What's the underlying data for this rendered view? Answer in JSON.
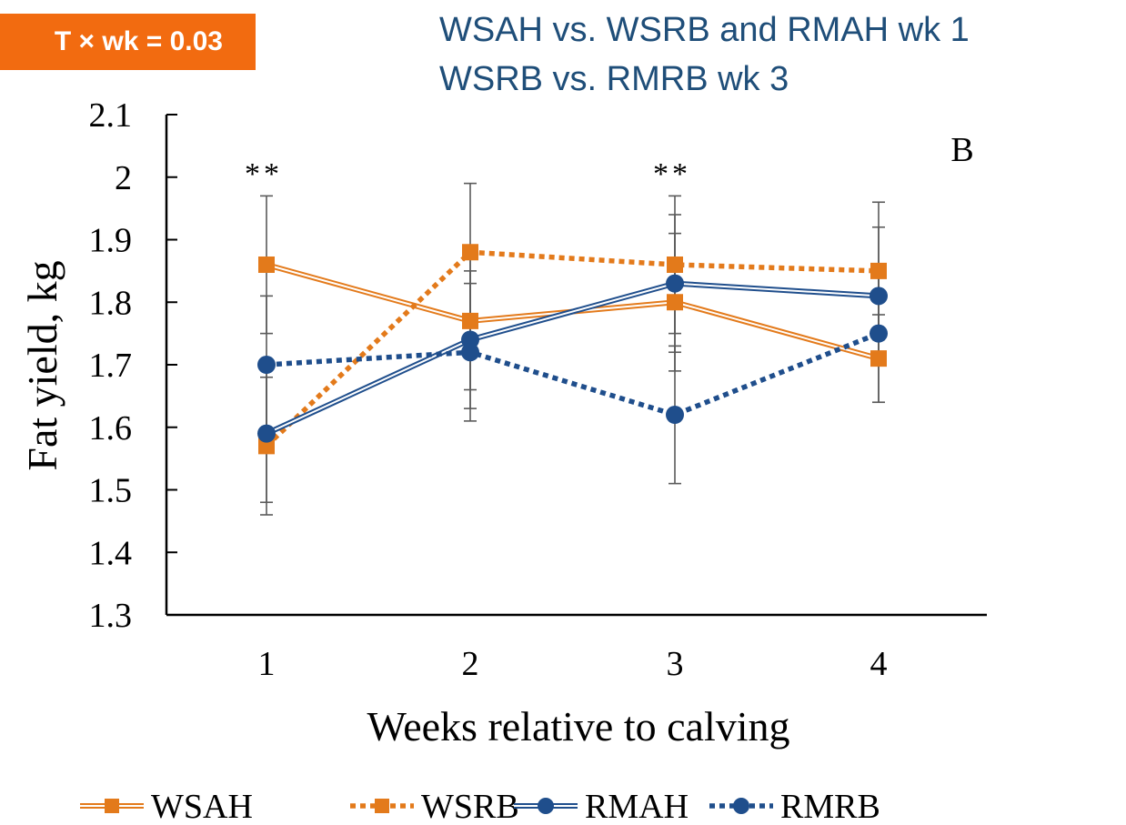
{
  "badge": {
    "text": "T × wk = 0.03"
  },
  "subtitles": [
    "WSAH vs. WSRB and RMAH wk 1",
    "WSRB vs. RMRB wk 3"
  ],
  "colors": {
    "orange": "#e37a1b",
    "blue": "#1f4e8c",
    "badge": "#f26b10",
    "subtitle": "#1f4e79",
    "errorbar": "#5a5a5a"
  },
  "chart_data": {
    "type": "line",
    "x": [
      1,
      2,
      3,
      4
    ],
    "xlabel": "Weeks relative to calving",
    "ylabel": "Fat yield,  kg",
    "ylim": [
      1.3,
      2.1
    ],
    "yticks": [
      "1.3",
      "1.4",
      "1.5",
      "1.6",
      "1.7",
      "1.8",
      "1.9",
      "2",
      "2.1"
    ],
    "xticks": [
      "1",
      "2",
      "3",
      "4"
    ],
    "panel_label": "B",
    "annotations": [
      {
        "x": 1,
        "text": "**"
      },
      {
        "x": 3,
        "text": "**"
      }
    ],
    "series": [
      {
        "name": "WSAH",
        "color": "orange",
        "style": "double",
        "marker": "square",
        "values": [
          1.86,
          1.77,
          1.8,
          1.71
        ],
        "err": [
          0.11,
          0.11,
          0.11,
          0.07
        ]
      },
      {
        "name": "WSRB",
        "color": "orange",
        "style": "dotted",
        "marker": "square",
        "values": [
          1.57,
          1.88,
          1.86,
          1.85
        ],
        "err": [
          0.11,
          0.11,
          0.11,
          0.11
        ]
      },
      {
        "name": "RMAH",
        "color": "blue",
        "style": "double",
        "marker": "circle",
        "values": [
          1.59,
          1.74,
          1.83,
          1.81
        ],
        "err": [
          0.11,
          0.11,
          0.11,
          0.11
        ]
      },
      {
        "name": "RMRB",
        "color": "blue",
        "style": "dotted",
        "marker": "circle",
        "values": [
          1.7,
          1.72,
          1.62,
          1.75
        ],
        "err": [
          0.11,
          0.11,
          0.11,
          0.11
        ]
      }
    ],
    "legend": {
      "placement": "bottom"
    }
  }
}
